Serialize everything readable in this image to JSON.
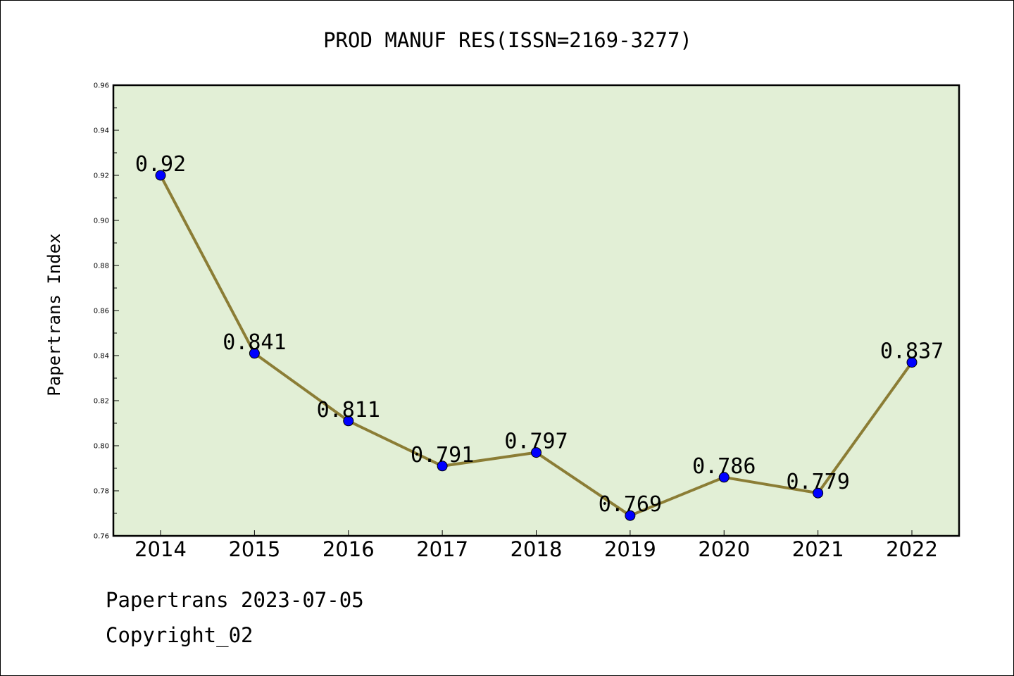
{
  "chart_data": {
    "type": "line",
    "title": "PROD MANUF RES(ISSN=2169-3277)",
    "xlabel": "",
    "ylabel": "Papertrans Index",
    "categories": [
      "2014",
      "2015",
      "2016",
      "2017",
      "2018",
      "2019",
      "2020",
      "2021",
      "2022"
    ],
    "series": [
      {
        "values": [
          0.92,
          0.841,
          0.811,
          0.791,
          0.797,
          0.769,
          0.786,
          0.779,
          0.837
        ],
        "labels": [
          "0.92",
          "0.841",
          "0.811",
          "0.791",
          "0.797",
          "0.769",
          "0.786",
          "0.779",
          "0.837"
        ]
      }
    ],
    "ylim": [
      0.76,
      0.96
    ],
    "yticks": [
      "0.76",
      "0.78",
      "0.80",
      "0.82",
      "0.84",
      "0.86",
      "0.88",
      "0.90",
      "0.92",
      "0.94",
      "0.96"
    ],
    "grid": false,
    "colors": {
      "plot_background": "#e2efd6",
      "line": "#8b7d35",
      "marker": "#0000ff"
    }
  },
  "footer": {
    "line1": "Papertrans 2023-07-05",
    "line2": "Copyright_02"
  }
}
